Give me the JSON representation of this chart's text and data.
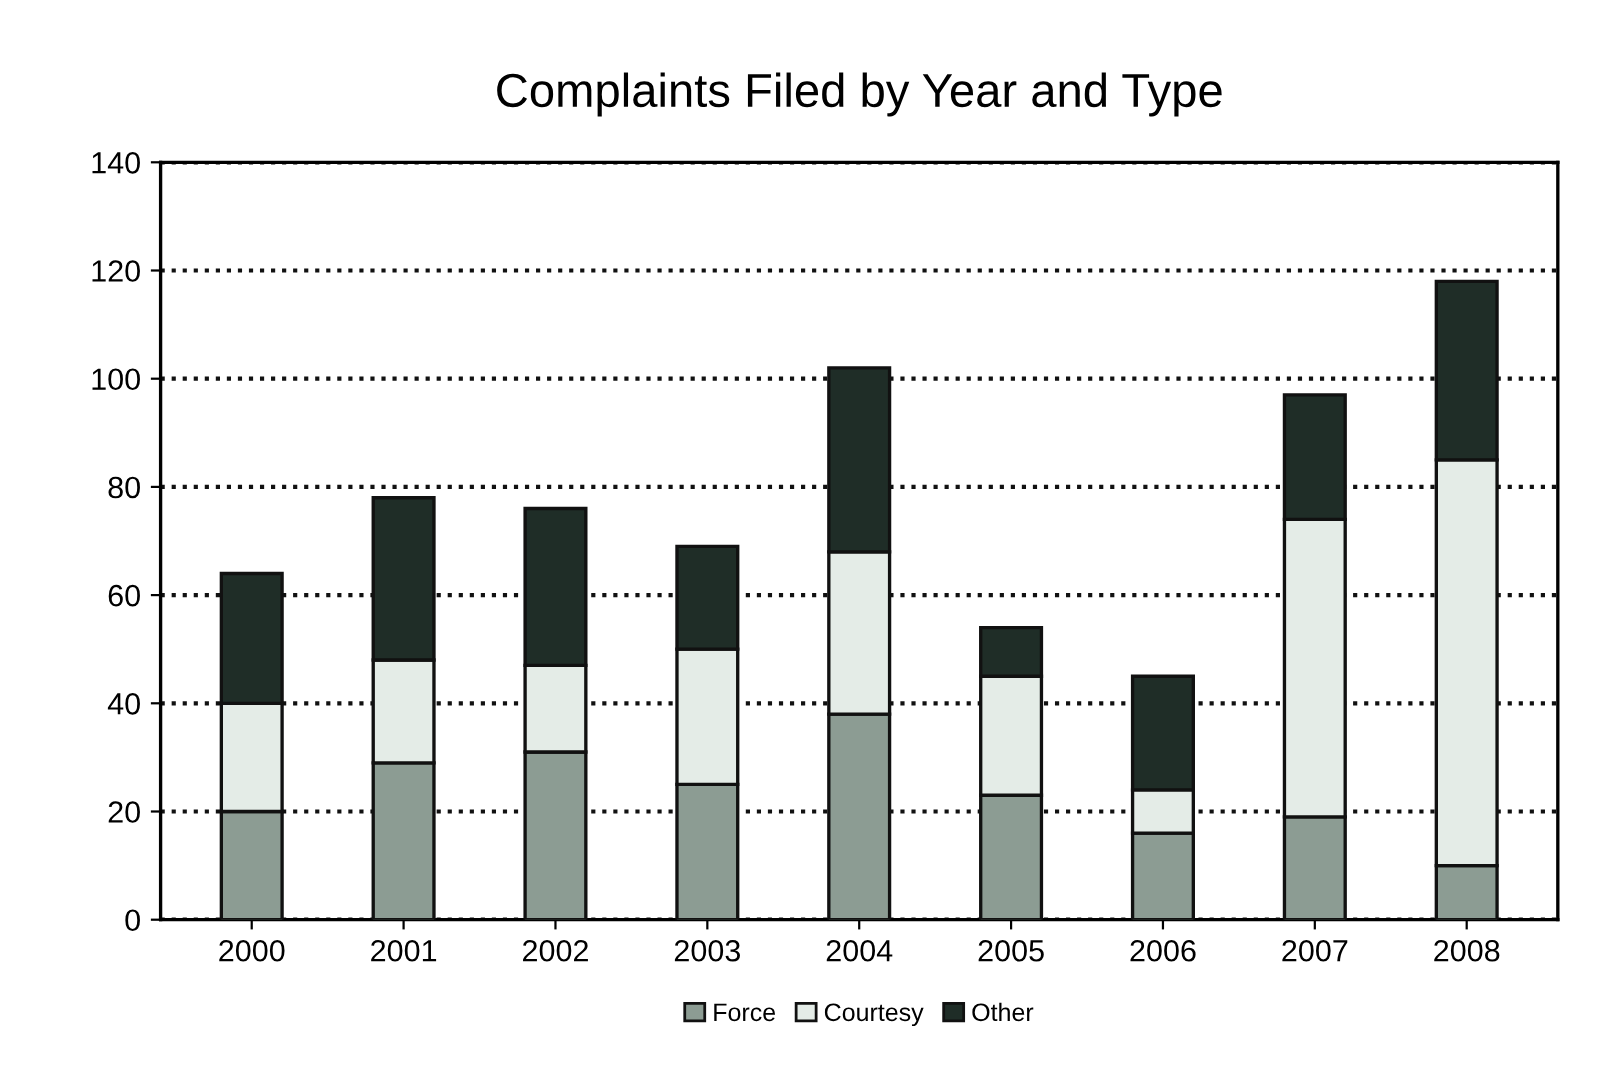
{
  "chart_data": {
    "type": "bar",
    "title": "Complaints Filed by Year and Type",
    "categories": [
      "2000",
      "2001",
      "2002",
      "2003",
      "2004",
      "2005",
      "2006",
      "2007",
      "2008"
    ],
    "stacked": true,
    "series": [
      {
        "name": "Force",
        "color": "#8c9c93",
        "values": [
          20,
          29,
          31,
          25,
          38,
          23,
          16,
          19,
          10
        ]
      },
      {
        "name": "Courtesy",
        "color": "#e4ece7",
        "values": [
          20,
          19,
          16,
          25,
          30,
          22,
          8,
          55,
          75
        ]
      },
      {
        "name": "Other",
        "color": "#1f2d27",
        "values": [
          24,
          30,
          29,
          19,
          34,
          9,
          21,
          23,
          33
        ]
      }
    ],
    "ylim": [
      0,
      140
    ],
    "yticks": [
      0,
      20,
      40,
      60,
      80,
      100,
      120,
      140
    ],
    "grid": "y",
    "line_style": "dotted",
    "legend": "bottom"
  }
}
